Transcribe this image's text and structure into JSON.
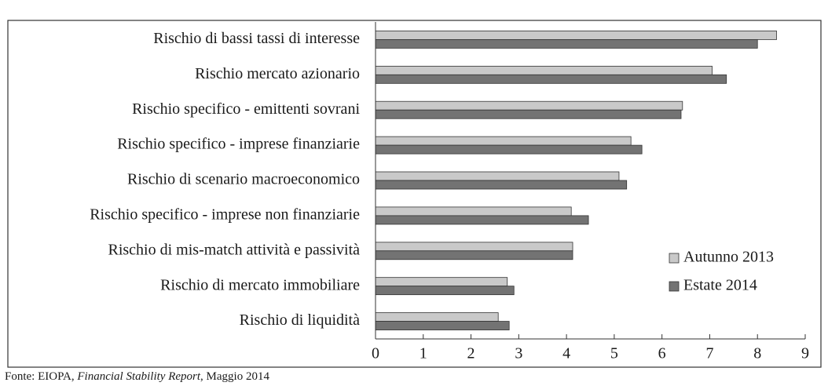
{
  "chart_data": {
    "type": "barh",
    "categories": [
      "Rischio di bassi tassi di interesse",
      "Rischio mercato azionario",
      "Rischio specifico - emittenti sovrani",
      "Rischio specifico - imprese finanziarie",
      "Rischio di scenario macroeconomico",
      "Rischio specifico - imprese non finanziarie",
      "Rischio di mis-match attività e passività",
      "Rischio di mercato immobiliare",
      "Rischio di liquidità"
    ],
    "series": [
      {
        "name": "Autunno 2013",
        "color": "#c9c9c9",
        "values": [
          8.4,
          7.05,
          6.43,
          5.35,
          5.1,
          4.1,
          4.13,
          2.76,
          2.57
        ]
      },
      {
        "name": "Estate 2014",
        "color": "#737373",
        "values": [
          8.0,
          7.35,
          6.4,
          5.58,
          5.26,
          4.46,
          4.13,
          2.9,
          2.8
        ]
      }
    ],
    "xlim": [
      0,
      9
    ],
    "xticks": [
      0,
      1,
      2,
      3,
      4,
      5,
      6,
      7,
      8,
      9
    ],
    "legend": "right",
    "source": {
      "prefix": "Fonte: EIOPA, ",
      "title": "Financial Stability Report",
      "suffix": ", Maggio 2014"
    }
  }
}
